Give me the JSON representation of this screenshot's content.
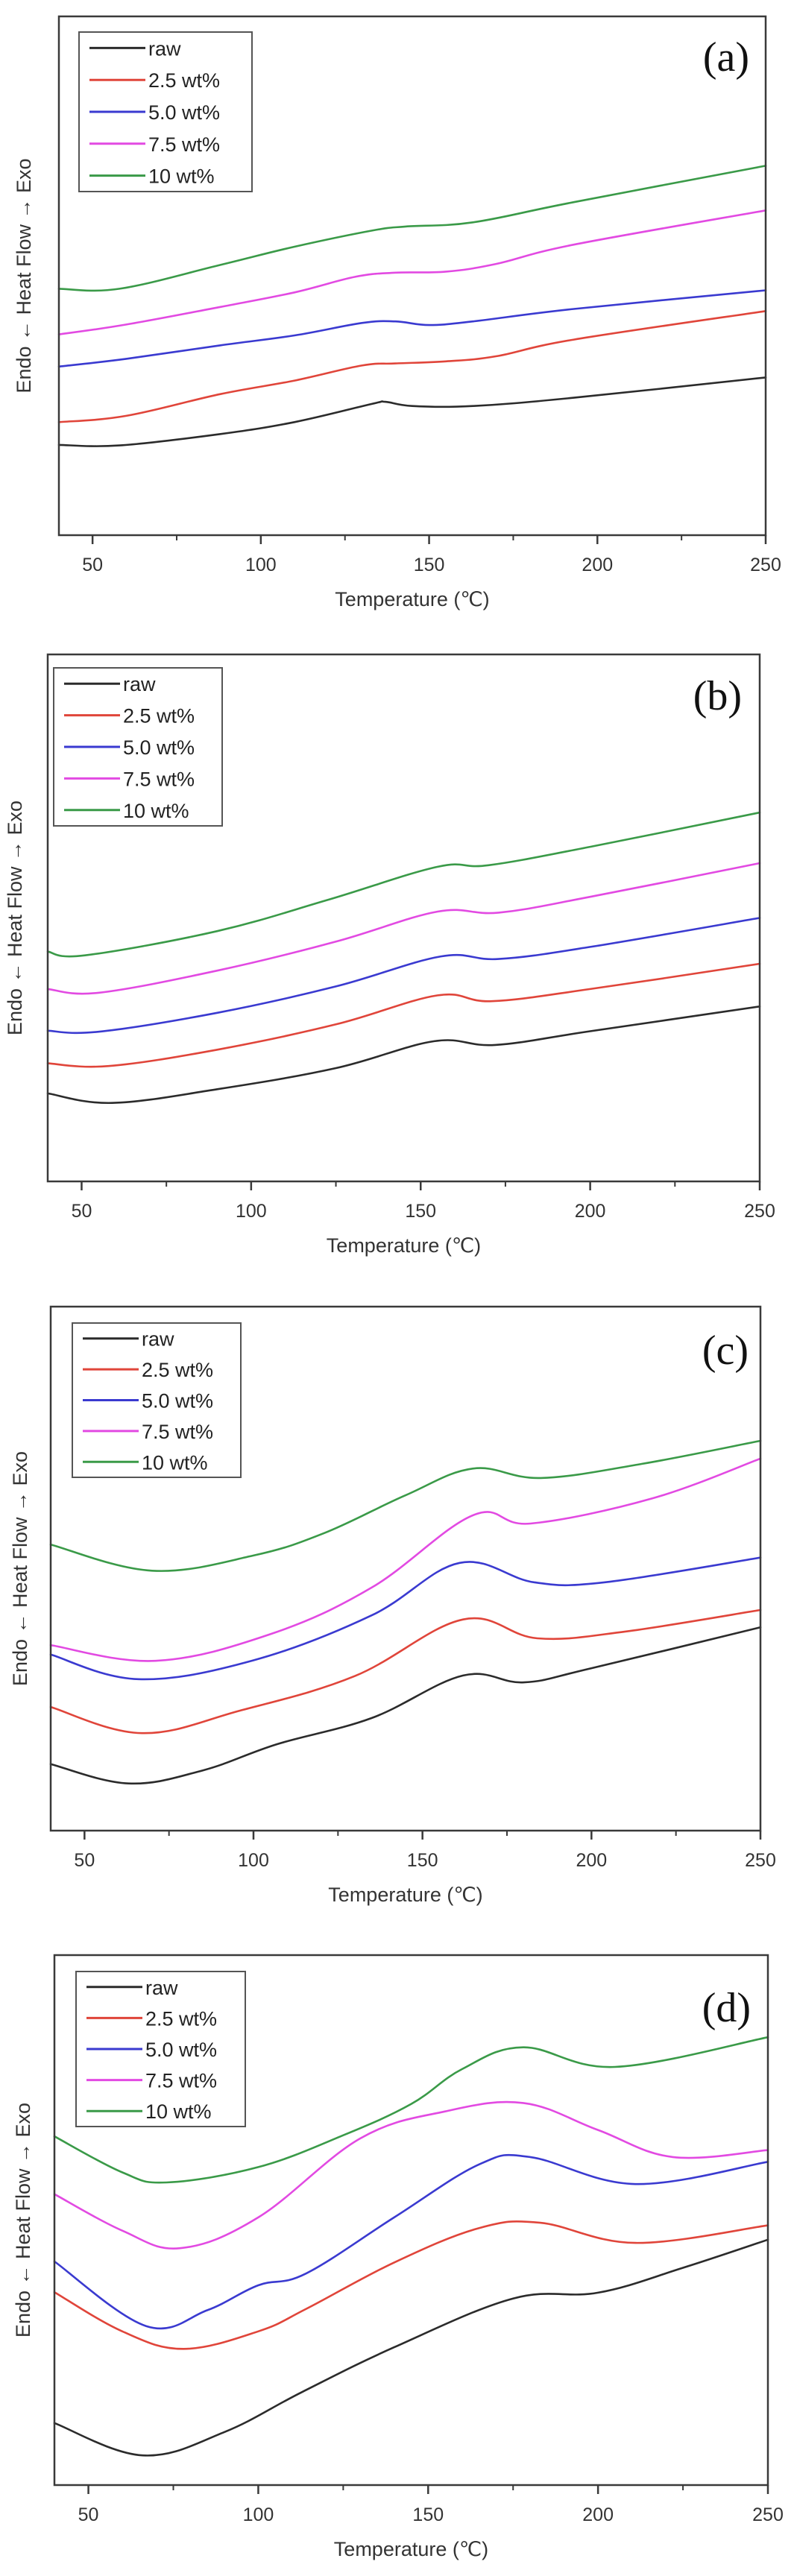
{
  "chart_data": [
    {
      "type": "line",
      "panel_label": "(a)",
      "xlabel": "Temperature (℃)",
      "ylabel": "Endo ← Heat Flow → Exo",
      "xlim": [
        40,
        250
      ],
      "ylim": [
        0,
        100
      ],
      "y_units": "arbitrary (relative heat flow, no tick labels)",
      "xticks": [
        50,
        100,
        150,
        200,
        250
      ],
      "x_minor_ticks": [
        75,
        125,
        175,
        225
      ],
      "grid": false,
      "legend_position": "top-left",
      "series": [
        {
          "name": "raw",
          "color": "#2b2b2b",
          "points": [
            [
              40,
              17.4
            ],
            [
              58,
              17.3
            ],
            [
              88,
              19.5
            ],
            [
              110,
              21.8
            ],
            [
              133,
              25.3
            ],
            [
              137,
              25.7
            ],
            [
              145,
              24.9
            ],
            [
              163,
              24.9
            ],
            [
              193,
              26.5
            ],
            [
              250,
              30.4
            ]
          ]
        },
        {
          "name": "2.5 wt%",
          "color": "#e0453a",
          "points": [
            [
              40,
              21.8
            ],
            [
              60,
              23.0
            ],
            [
              88,
              27.2
            ],
            [
              110,
              29.8
            ],
            [
              130,
              32.7
            ],
            [
              140,
              33.1
            ],
            [
              155,
              33.5
            ],
            [
              170,
              34.5
            ],
            [
              193,
              37.7
            ],
            [
              250,
              43.2
            ]
          ]
        },
        {
          "name": "5.0 wt%",
          "color": "#3a3ad0",
          "points": [
            [
              40,
              32.5
            ],
            [
              60,
              34.0
            ],
            [
              88,
              36.6
            ],
            [
              110,
              38.5
            ],
            [
              130,
              40.9
            ],
            [
              140,
              41.2
            ],
            [
              150,
              40.5
            ],
            [
              163,
              41.2
            ],
            [
              193,
              43.6
            ],
            [
              250,
              47.2
            ]
          ]
        },
        {
          "name": "7.5 wt%",
          "color": "#e24ae2",
          "points": [
            [
              40,
              38.7
            ],
            [
              60,
              40.6
            ],
            [
              88,
              44.0
            ],
            [
              110,
              46.8
            ],
            [
              128,
              49.8
            ],
            [
              140,
              50.6
            ],
            [
              155,
              50.8
            ],
            [
              170,
              52.3
            ],
            [
              193,
              56.0
            ],
            [
              250,
              62.6
            ]
          ]
        },
        {
          "name": "10 wt%",
          "color": "#3a9a48",
          "points": [
            [
              40,
              47.5
            ],
            [
              58,
              47.5
            ],
            [
              88,
              52.1
            ],
            [
              110,
              55.6
            ],
            [
              133,
              58.7
            ],
            [
              143,
              59.5
            ],
            [
              163,
              60.3
            ],
            [
              193,
              64.2
            ],
            [
              250,
              71.2
            ]
          ]
        }
      ]
    },
    {
      "type": "line",
      "panel_label": "(b)",
      "xlabel": "Temperature (℃)",
      "ylabel": "Endo ← Heat Flow → Exo",
      "xlim": [
        40,
        250
      ],
      "ylim": [
        0,
        100
      ],
      "y_units": "arbitrary (relative heat flow, no tick labels)",
      "xticks": [
        50,
        100,
        150,
        200,
        250
      ],
      "x_minor_ticks": [
        75,
        125,
        175,
        225
      ],
      "grid": false,
      "legend_position": "top-left",
      "series": [
        {
          "name": "raw",
          "color": "#2b2b2b",
          "points": [
            [
              40,
              16.7
            ],
            [
              59,
              14.9
            ],
            [
              90,
              17.5
            ],
            [
              125,
              21.5
            ],
            [
              154,
              26.6
            ],
            [
              172,
              25.9
            ],
            [
              200,
              28.5
            ],
            [
              250,
              33.2
            ]
          ]
        },
        {
          "name": "2.5 wt%",
          "color": "#e0453a",
          "points": [
            [
              40,
              22.4
            ],
            [
              58,
              21.9
            ],
            [
              90,
              25.0
            ],
            [
              125,
              29.8
            ],
            [
              155,
              35.3
            ],
            [
              171,
              34.2
            ],
            [
              200,
              36.5
            ],
            [
              250,
              41.3
            ]
          ]
        },
        {
          "name": "5.0 wt%",
          "color": "#3a3ad0",
          "points": [
            [
              40,
              28.6
            ],
            [
              55,
              28.4
            ],
            [
              90,
              32.0
            ],
            [
              125,
              37.0
            ],
            [
              156,
              42.7
            ],
            [
              173,
              42.2
            ],
            [
              200,
              44.5
            ],
            [
              250,
              50.0
            ]
          ]
        },
        {
          "name": "7.5 wt%",
          "color": "#e24ae2",
          "points": [
            [
              40,
              36.5
            ],
            [
              55,
              35.8
            ],
            [
              90,
              40.0
            ],
            [
              125,
              45.5
            ],
            [
              155,
              51.2
            ],
            [
              173,
              51.0
            ],
            [
              200,
              54.0
            ],
            [
              250,
              60.4
            ]
          ]
        },
        {
          "name": "10 wt%",
          "color": "#3a9a48",
          "points": [
            [
              40,
              43.6
            ],
            [
              51,
              42.9
            ],
            [
              90,
              47.5
            ],
            [
              123,
              53.5
            ],
            [
              155,
              59.7
            ],
            [
              170,
              60.0
            ],
            [
              200,
              63.5
            ],
            [
              250,
              70.0
            ]
          ]
        }
      ]
    },
    {
      "type": "line",
      "panel_label": "(c)",
      "xlabel": "Temperature (℃)",
      "ylabel": "Endo ← Heat Flow → Exo",
      "xlim": [
        40,
        250
      ],
      "ylim": [
        0,
        100
      ],
      "y_units": "arbitrary (relative heat flow, no tick labels)",
      "xticks": [
        50,
        100,
        150,
        200,
        250
      ],
      "x_minor_ticks": [
        75,
        125,
        175,
        225
      ],
      "grid": false,
      "legend_position": "top-left",
      "series": [
        {
          "name": "raw",
          "color": "#2b2b2b",
          "points": [
            [
              40,
              12.7
            ],
            [
              63,
              9.0
            ],
            [
              85,
              11.5
            ],
            [
              107,
              16.5
            ],
            [
              135,
              21.5
            ],
            [
              162,
              29.6
            ],
            [
              180,
              28.3
            ],
            [
              200,
              31.0
            ],
            [
              250,
              38.8
            ]
          ]
        },
        {
          "name": "2.5 wt%",
          "color": "#e0453a",
          "points": [
            [
              40,
              23.6
            ],
            [
              67,
              18.6
            ],
            [
              96,
              22.9
            ],
            [
              130,
              29.5
            ],
            [
              162,
              40.3
            ],
            [
              184,
              36.7
            ],
            [
              210,
              38.0
            ],
            [
              250,
              42.1
            ]
          ]
        },
        {
          "name": "5.0 wt%",
          "color": "#3a3ad0",
          "points": [
            [
              40,
              33.6
            ],
            [
              66,
              28.9
            ],
            [
              100,
              32.5
            ],
            [
              135,
              41.1
            ],
            [
              161,
              51.1
            ],
            [
              183,
              47.4
            ],
            [
              204,
              47.4
            ],
            [
              250,
              52.1
            ]
          ]
        },
        {
          "name": "7.5 wt%",
          "color": "#e24ae2",
          "points": [
            [
              40,
              35.4
            ],
            [
              71,
              32.4
            ],
            [
              105,
              37.5
            ],
            [
              135,
              46.4
            ],
            [
              165,
              60.2
            ],
            [
              182,
              58.6
            ],
            [
              218,
              63.4
            ],
            [
              250,
              71.0
            ]
          ]
        },
        {
          "name": "10 wt%",
          "color": "#3a9a48",
          "points": [
            [
              40,
              54.6
            ],
            [
              70,
              49.6
            ],
            [
              100,
              52.5
            ],
            [
              121,
              56.8
            ],
            [
              145,
              64.0
            ],
            [
              165,
              69.1
            ],
            [
              185,
              67.3
            ],
            [
              215,
              70.0
            ],
            [
              250,
              74.4
            ]
          ]
        }
      ]
    },
    {
      "type": "line",
      "panel_label": "(d)",
      "xlabel": "Temperature (℃)",
      "ylabel": "Endo ← Heat Flow → Exo",
      "xlim": [
        40,
        250
      ],
      "ylim": [
        0,
        100
      ],
      "y_units": "arbitrary (relative heat flow, no tick labels)",
      "xticks": [
        50,
        100,
        150,
        200,
        250
      ],
      "x_minor_ticks": [
        75,
        125,
        175,
        225
      ],
      "grid": false,
      "legend_position": "top-left",
      "series": [
        {
          "name": "raw",
          "color": "#2b2b2b",
          "points": [
            [
              40,
              11.7
            ],
            [
              66,
              5.6
            ],
            [
              90,
              10.0
            ],
            [
              113,
              17.6
            ],
            [
              140,
              26.0
            ],
            [
              175,
              35.2
            ],
            [
              200,
              36.3
            ],
            [
              225,
              41.0
            ],
            [
              250,
              46.3
            ]
          ]
        },
        {
          "name": "2.5 wt%",
          "color": "#e0453a",
          "points": [
            [
              40,
              36.4
            ],
            [
              60,
              29.0
            ],
            [
              78,
              25.7
            ],
            [
              100,
              29.0
            ],
            [
              114,
              33.2
            ],
            [
              140,
              42.0
            ],
            [
              165,
              48.5
            ],
            [
              183,
              49.5
            ],
            [
              211,
              45.7
            ],
            [
              250,
              49.0
            ]
          ]
        },
        {
          "name": "5.0 wt%",
          "color": "#3a3ad0",
          "points": [
            [
              40,
              42.2
            ],
            [
              67,
              30.0
            ],
            [
              85,
              33.0
            ],
            [
              100,
              37.7
            ],
            [
              114,
              39.9
            ],
            [
              140,
              50.5
            ],
            [
              165,
              60.5
            ],
            [
              180,
              61.9
            ],
            [
              211,
              56.8
            ],
            [
              250,
              61.0
            ]
          ]
        },
        {
          "name": "7.5 wt%",
          "color": "#e24ae2",
          "points": [
            [
              40,
              54.9
            ],
            [
              60,
              48.0
            ],
            [
              77,
              44.7
            ],
            [
              100,
              50.5
            ],
            [
              130,
              65.4
            ],
            [
              155,
              70.5
            ],
            [
              178,
              72.1
            ],
            [
              200,
              67.0
            ],
            [
              222,
              61.9
            ],
            [
              250,
              63.2
            ]
          ]
        },
        {
          "name": "10 wt%",
          "color": "#3a9a48",
          "points": [
            [
              40,
              65.8
            ],
            [
              60,
              59.0
            ],
            [
              73,
              57.1
            ],
            [
              100,
              60.0
            ],
            [
              125,
              66.0
            ],
            [
              145,
              71.9
            ],
            [
              160,
              78.5
            ],
            [
              178,
              82.6
            ],
            [
              205,
              78.9
            ],
            [
              250,
              84.5
            ]
          ]
        }
      ]
    }
  ]
}
